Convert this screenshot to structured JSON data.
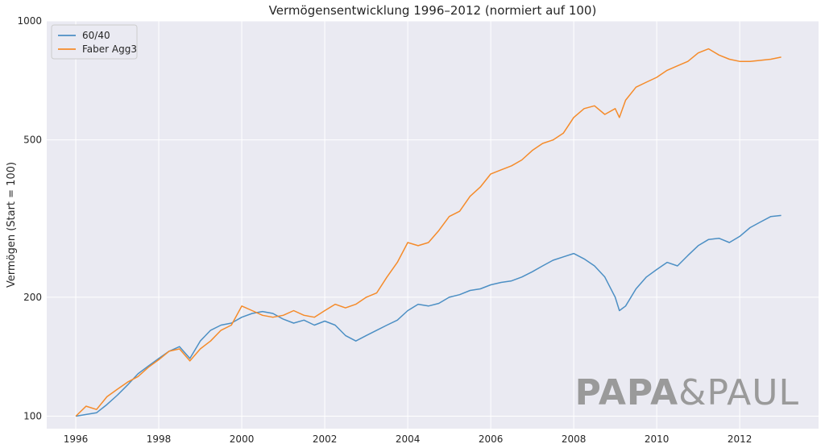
{
  "chart_data": {
    "type": "line",
    "title": "Vermögensentwicklung 1996–2012 (normiert auf 100)",
    "xlabel": "",
    "ylabel": "Vermögen (Start = 100)",
    "yscale": "log",
    "xlim": [
      1995.3,
      2013.9
    ],
    "ylim": [
      93,
      1000
    ],
    "x_ticks": [
      1996,
      1998,
      2000,
      2002,
      2004,
      2006,
      2008,
      2010,
      2012
    ],
    "y_ticks": [
      100,
      200,
      500,
      1000
    ],
    "grid": true,
    "legend_position": "upper-left",
    "x": [
      1996.0,
      1996.25,
      1996.5,
      1996.75,
      1997.0,
      1997.25,
      1997.5,
      1997.75,
      1998.0,
      1998.25,
      1998.5,
      1998.75,
      1999.0,
      1999.25,
      1999.5,
      1999.75,
      2000.0,
      2000.25,
      2000.5,
      2000.75,
      2001.0,
      2001.25,
      2001.5,
      2001.75,
      2002.0,
      2002.25,
      2002.5,
      2002.75,
      2003.0,
      2003.25,
      2003.5,
      2003.75,
      2004.0,
      2004.25,
      2004.5,
      2004.75,
      2005.0,
      2005.25,
      2005.5,
      2005.75,
      2006.0,
      2006.25,
      2006.5,
      2006.75,
      2007.0,
      2007.25,
      2007.5,
      2007.75,
      2008.0,
      2008.25,
      2008.5,
      2008.75,
      2009.0,
      2009.1,
      2009.25,
      2009.5,
      2009.75,
      2010.0,
      2010.25,
      2010.5,
      2010.75,
      2011.0,
      2011.25,
      2011.5,
      2011.75,
      2012.0,
      2012.25,
      2012.5,
      2012.75,
      2013.0
    ],
    "series": [
      {
        "name": "60/40",
        "color": "#4c8fc4",
        "values": [
          100,
          101,
          102,
          107,
          113,
          120,
          128,
          134,
          140,
          146,
          150,
          140,
          155,
          165,
          170,
          172,
          178,
          182,
          184,
          182,
          176,
          172,
          175,
          170,
          174,
          170,
          160,
          155,
          160,
          165,
          170,
          175,
          185,
          192,
          190,
          193,
          200,
          203,
          208,
          210,
          215,
          218,
          220,
          225,
          232,
          240,
          248,
          253,
          258,
          250,
          240,
          225,
          200,
          185,
          190,
          210,
          225,
          235,
          245,
          240,
          255,
          270,
          280,
          282,
          275,
          285,
          300,
          310,
          320,
          322
        ]
      },
      {
        "name": "Faber Agg3",
        "color": "#f58b2a",
        "values": [
          100,
          106,
          104,
          112,
          117,
          122,
          126,
          133,
          139,
          146,
          148,
          138,
          148,
          155,
          165,
          170,
          190,
          185,
          180,
          178,
          180,
          185,
          180,
          178,
          185,
          192,
          188,
          192,
          200,
          205,
          225,
          245,
          275,
          270,
          275,
          295,
          320,
          330,
          360,
          380,
          410,
          420,
          430,
          445,
          470,
          490,
          500,
          520,
          570,
          600,
          610,
          580,
          600,
          570,
          630,
          680,
          700,
          720,
          750,
          770,
          790,
          830,
          850,
          820,
          800,
          790,
          790,
          795,
          800,
          810
        ]
      }
    ]
  },
  "watermark": {
    "bold_part": "PAPA",
    "light_part": "&PAUL"
  }
}
